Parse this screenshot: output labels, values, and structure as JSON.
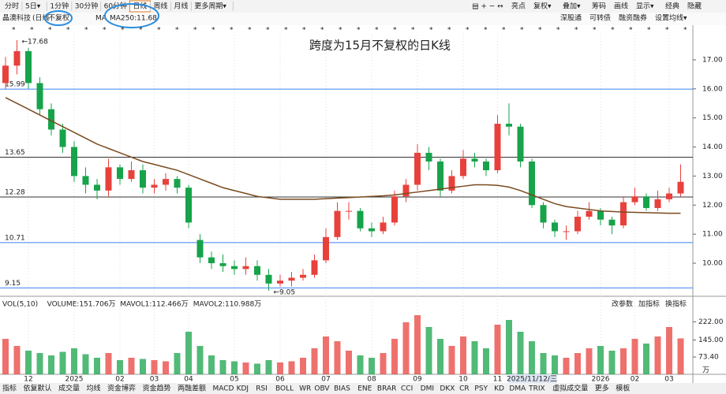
{
  "toolbar": {
    "periods": [
      "分时",
      "5日▾",
      "1分钟",
      "30分钟",
      "60分钟",
      "日线",
      "周线",
      "月线",
      "更多周期▾"
    ],
    "tools": [
      "亮点",
      "复权▾",
      "叠加▾",
      "筹码",
      "画线",
      "显示▾",
      "经典",
      "隐藏"
    ]
  },
  "stock_bar": {
    "name": "晶澳科技",
    "period_note": "(日线",
    "adjust": "不复权",
    "ma_label": "MA",
    "ma250": "MA250:11.68",
    "links": [
      "深股通",
      "可转债",
      "融资融券",
      "设置均线▾"
    ]
  },
  "chart_data": [
    {
      "type": "candlestick",
      "title": "跨度为15月不复权的日K线",
      "categories": [
        null,
        null,
        "12",
        null,
        null,
        null,
        "2025",
        null,
        null,
        null,
        "02",
        null,
        null,
        "03",
        null,
        null,
        "04",
        null,
        null,
        null,
        "05",
        null,
        null,
        null,
        "06",
        null,
        null,
        null,
        "07",
        null,
        null,
        null,
        "08",
        null,
        null,
        null,
        "09",
        null,
        null,
        null,
        "10",
        null,
        null,
        "11",
        null,
        null,
        null,
        null,
        null,
        null,
        null,
        null,
        "2026",
        null,
        null,
        "02",
        null,
        null,
        "03",
        null
      ],
      "crosshair_date": "2025/11/12/三",
      "open": [
        16.2,
        16.8,
        17.3,
        16.2,
        15.3,
        14.6,
        14.0,
        13.0,
        12.7,
        12.5,
        13.3,
        12.9,
        13.2,
        12.6,
        12.7,
        12.9,
        12.6,
        10.8,
        10.2,
        10.0,
        9.9,
        9.8,
        9.9,
        9.6,
        9.3,
        9.4,
        9.5,
        9.6,
        10.1,
        10.9,
        11.8,
        11.8,
        11.2,
        11.1,
        11.4,
        12.3,
        12.7,
        13.8,
        13.5,
        12.5,
        13.0,
        13.6,
        13.5,
        13.2,
        14.8,
        14.7,
        13.5,
        12.0,
        11.4,
        11.1,
        11.1,
        11.6,
        11.8,
        11.5,
        11.3,
        12.1,
        12.3,
        11.9,
        12.2,
        12.4
      ],
      "high": [
        17.1,
        17.68,
        17.4,
        16.4,
        15.5,
        14.8,
        14.2,
        13.3,
        12.9,
        13.6,
        13.4,
        13.5,
        13.4,
        12.9,
        13.1,
        13.0,
        12.7,
        11.0,
        10.4,
        10.3,
        10.1,
        10.2,
        10.1,
        9.8,
        9.6,
        9.7,
        9.8,
        10.3,
        11.2,
        12.1,
        12.1,
        11.9,
        11.4,
        11.6,
        12.5,
        12.9,
        14.1,
        14.0,
        13.6,
        13.2,
        13.9,
        13.8,
        13.6,
        15.1,
        15.5,
        14.8,
        13.6,
        12.1,
        11.5,
        11.3,
        11.8,
        12.1,
        11.9,
        11.6,
        12.3,
        12.6,
        12.4,
        12.5,
        12.6,
        13.4
      ],
      "low": [
        16.0,
        16.5,
        16.0,
        15.1,
        14.4,
        13.8,
        12.8,
        12.4,
        12.2,
        12.3,
        12.7,
        12.8,
        12.4,
        12.4,
        12.5,
        12.4,
        11.2,
        10.0,
        9.8,
        9.7,
        9.6,
        9.6,
        9.4,
        9.05,
        9.2,
        9.2,
        9.4,
        9.5,
        10.0,
        10.8,
        11.5,
        11.1,
        10.9,
        11.0,
        11.3,
        12.1,
        12.5,
        13.2,
        12.3,
        12.4,
        12.9,
        13.3,
        13.0,
        13.1,
        14.4,
        13.3,
        11.9,
        11.2,
        10.9,
        10.8,
        11.0,
        11.5,
        11.3,
        11.0,
        11.2,
        12.0,
        11.8,
        11.8,
        12.1,
        12.3
      ],
      "close": [
        16.8,
        17.3,
        16.2,
        15.3,
        14.6,
        14.0,
        13.0,
        12.7,
        12.5,
        13.3,
        12.9,
        13.2,
        12.6,
        12.7,
        12.9,
        12.6,
        11.4,
        10.2,
        10.0,
        9.9,
        9.8,
        9.9,
        9.6,
        9.3,
        9.4,
        9.5,
        9.6,
        10.1,
        10.9,
        11.8,
        11.8,
        11.2,
        11.1,
        11.4,
        12.3,
        12.7,
        13.8,
        13.5,
        12.5,
        13.0,
        13.6,
        13.5,
        13.2,
        14.8,
        14.7,
        13.5,
        12.0,
        11.4,
        11.1,
        11.1,
        11.6,
        11.8,
        11.5,
        11.3,
        12.1,
        12.3,
        11.9,
        12.2,
        12.4,
        12.8
      ],
      "ma": {
        "color": "#7a4a1e",
        "values": [
          15.7,
          15.5,
          15.3,
          15.1,
          14.9,
          14.7,
          14.5,
          14.3,
          14.1,
          13.95,
          13.8,
          13.65,
          13.5,
          13.4,
          13.3,
          13.2,
          13.05,
          12.9,
          12.75,
          12.6,
          12.5,
          12.4,
          12.3,
          12.25,
          12.2,
          12.2,
          12.2,
          12.2,
          12.22,
          12.24,
          12.26,
          12.28,
          12.3,
          12.32,
          12.35,
          12.4,
          12.45,
          12.5,
          12.55,
          12.6,
          12.65,
          12.7,
          12.7,
          12.68,
          12.62,
          12.5,
          12.35,
          12.2,
          12.05,
          11.95,
          11.9,
          11.85,
          11.8,
          11.78,
          11.76,
          11.75,
          11.74,
          11.73,
          11.72,
          11.72
        ]
      },
      "up_color": "#e8413c",
      "down_color": "#17a34a",
      "ylim": [
        8.97,
        17.92
      ],
      "yticks": [
        {
          "value": 10,
          "label": "10.00"
        },
        {
          "value": 11,
          "label": "11.00"
        },
        {
          "value": 12,
          "label": "12.00"
        },
        {
          "value": 13,
          "label": "13.00"
        },
        {
          "value": 14,
          "label": "14.00"
        },
        {
          "value": 15,
          "label": "15.00"
        },
        {
          "value": 16,
          "label": "16.00"
        },
        {
          "value": 17,
          "label": "17.00"
        }
      ],
      "levels": [
        {
          "value": 15.99,
          "color": "#3b82f6"
        },
        {
          "value": 13.65,
          "color": "#333333"
        },
        {
          "value": 12.28,
          "color": "#333333"
        },
        {
          "value": 10.71,
          "color": "#3b82f6"
        },
        {
          "value": 9.15,
          "color": "#3b82f6"
        }
      ],
      "high_label": "←17.68",
      "low_label": "←9.05"
    },
    {
      "type": "bar",
      "legend": [
        "VOL(5,10)",
        "VOLUME:151.706万",
        "MAVOL1:112.466万",
        "MAVOL2:110.988万"
      ],
      "legend_colors": [
        "#222222",
        "#1e3a8a",
        "#d946ef",
        "#555555"
      ],
      "actions": [
        "改参数",
        "加指标",
        "换指标"
      ],
      "values": [
        150,
        120,
        100,
        90,
        80,
        95,
        110,
        85,
        70,
        90,
        60,
        70,
        65,
        60,
        55,
        90,
        180,
        120,
        80,
        60,
        55,
        50,
        45,
        60,
        50,
        55,
        70,
        110,
        160,
        140,
        100,
        80,
        70,
        90,
        150,
        220,
        250,
        200,
        150,
        120,
        160,
        140,
        110,
        210,
        230,
        180,
        140,
        90,
        80,
        70,
        90,
        110,
        120,
        100,
        110,
        150,
        130,
        160,
        200,
        152
      ],
      "ylim": [
        0,
        270
      ],
      "yticks": [
        {
          "value": 73.4,
          "label": "73.40"
        },
        {
          "value": 145,
          "label": "145.00"
        },
        {
          "value": 222,
          "label": "222.00"
        }
      ],
      "unit": "万"
    }
  ],
  "indicator_tabs": [
    "指标",
    "依复默认",
    "成交量",
    "均线",
    "资金博弈",
    "资金趋势",
    "两融差额",
    "MACD",
    "KDJ",
    "RSI",
    "BOLL",
    "WR",
    "OBV",
    "BIAS",
    "ENE",
    "BRAR",
    "CCI",
    "DMI",
    "DKX",
    "CR",
    "PSY",
    "KD",
    "DMA",
    "TRIX",
    "虚拟成交量",
    "更多",
    "模板"
  ]
}
